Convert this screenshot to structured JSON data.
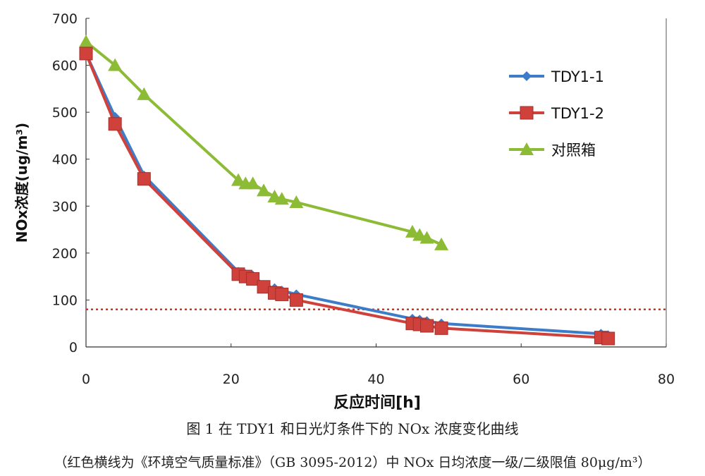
{
  "chart_data": {
    "type": "line",
    "xlabel": "反应时间[h]",
    "ylabel": "NOx浓度(ug/m³)",
    "xlim": [
      0,
      80
    ],
    "ylim": [
      0,
      700
    ],
    "xticks": [
      0,
      20,
      40,
      60,
      80
    ],
    "yticks": [
      0,
      100,
      200,
      300,
      400,
      500,
      600,
      700
    ],
    "grid": false,
    "legend_position": "top-right",
    "reference_line": {
      "y": 80,
      "color": "#c0392b",
      "style": "dotted"
    },
    "series": [
      {
        "name": "TDY1-1",
        "color": "#3d7cc9",
        "marker": "diamond",
        "x": [
          0,
          4,
          8,
          21,
          22,
          23,
          24.5,
          26,
          27,
          29,
          45,
          46,
          47,
          49,
          71,
          72
        ],
        "y": [
          625,
          490,
          365,
          160,
          155,
          152,
          132,
          125,
          120,
          112,
          60,
          58,
          55,
          50,
          28,
          25
        ]
      },
      {
        "name": "TDY1-2",
        "color": "#d0413c",
        "marker": "square",
        "x": [
          0,
          4,
          8,
          21,
          22,
          23,
          24.5,
          26,
          27,
          29,
          45,
          46,
          47,
          49,
          71,
          72
        ],
        "y": [
          625,
          475,
          358,
          155,
          150,
          145,
          128,
          115,
          112,
          100,
          50,
          48,
          45,
          40,
          20,
          18
        ]
      },
      {
        "name": "对照箱",
        "color": "#8cbb35",
        "marker": "triangle",
        "x": [
          0,
          4,
          8,
          21,
          22,
          23,
          24.5,
          26,
          27,
          29,
          45,
          46,
          47,
          49
        ],
        "y": [
          650,
          600,
          538,
          355,
          348,
          348,
          333,
          320,
          315,
          308,
          245,
          238,
          232,
          218
        ]
      }
    ]
  },
  "caption": {
    "title": "图 1 在 TDY1 和日光灯条件下的 NOx 浓度变化曲线",
    "note": "（红色横线为《环境空气质量标准》（GB 3095-2012）中 NOx 日均浓度一级/二级限值 80μg/m³）"
  }
}
